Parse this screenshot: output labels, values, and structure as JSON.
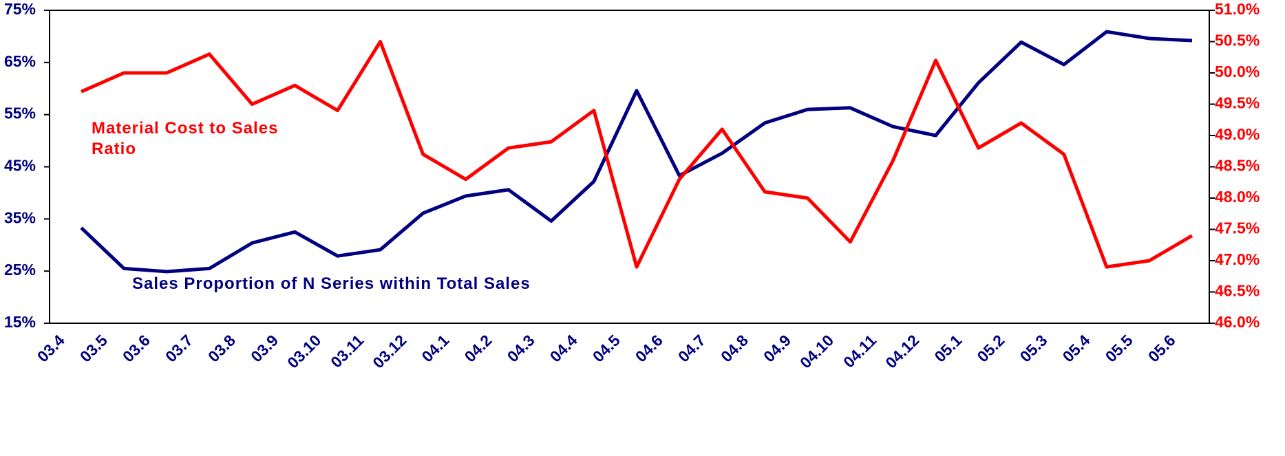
{
  "chart_data": {
    "type": "line",
    "categories": [
      "03.4",
      "03.5",
      "03.6",
      "03.7",
      "03.8",
      "03.9",
      "03.10",
      "03.11",
      "03.12",
      "04.1",
      "04.2",
      "04.3",
      "04.4",
      "04.5",
      "04.6",
      "04.7",
      "04.8",
      "04.9",
      "04.10",
      "04.11",
      "04.12",
      "05.1",
      "05.2",
      "05.3",
      "05.4",
      "05.5",
      "05.6"
    ],
    "series": [
      {
        "name": "Sales Proportion of N Series within Total Sales",
        "color": "#000080",
        "values": [
          33.3,
          25.5,
          24.9,
          25.5,
          30.4,
          32.5,
          27.9,
          29.1,
          36.1,
          39.4,
          40.6,
          34.6,
          42.2,
          59.6,
          43.3,
          47.6,
          53.4,
          56.0,
          56.3,
          52.7,
          51.0,
          61.1,
          68.9,
          64.6,
          70.9,
          69.6,
          69.2
        ]
      },
      {
        "name": "Material Cost to Sales Ratio",
        "color": "#ff0000",
        "axis": "y2",
        "values": [
          49.7,
          50.0,
          50.0,
          50.3,
          49.5,
          49.8,
          49.4,
          50.5,
          48.7,
          48.3,
          48.8,
          48.9,
          49.4,
          46.9,
          48.3,
          49.1,
          48.1,
          48.0,
          47.3,
          48.6,
          50.2,
          48.8,
          49.2,
          48.7,
          46.9,
          47.0,
          47.4
        ]
      }
    ],
    "ylim": [
      15,
      75
    ],
    "yticks": [
      {
        "value": 15,
        "label": "15%"
      },
      {
        "value": 25,
        "label": "25%"
      },
      {
        "value": 35,
        "label": "35%"
      },
      {
        "value": 45,
        "label": "45%"
      },
      {
        "value": 55,
        "label": "55%"
      },
      {
        "value": 65,
        "label": "65%"
      },
      {
        "value": 75,
        "label": "75%"
      }
    ],
    "y2lim": [
      46.0,
      51.0
    ],
    "y2ticks": [
      {
        "value": 46.0,
        "label": "46.0%"
      },
      {
        "value": 46.5,
        "label": "46.5%"
      },
      {
        "value": 47.0,
        "label": "47.0%"
      },
      {
        "value": 47.5,
        "label": "47.5%"
      },
      {
        "value": 48.0,
        "label": "48.0%"
      },
      {
        "value": 48.5,
        "label": "48.5%"
      },
      {
        "value": 49.0,
        "label": "49.0%"
      },
      {
        "value": 49.5,
        "label": "49.5%"
      },
      {
        "value": 50.0,
        "label": "50.0%"
      },
      {
        "value": 50.5,
        "label": "50.5%"
      },
      {
        "value": 51.0,
        "label": "51.0%"
      }
    ]
  }
}
